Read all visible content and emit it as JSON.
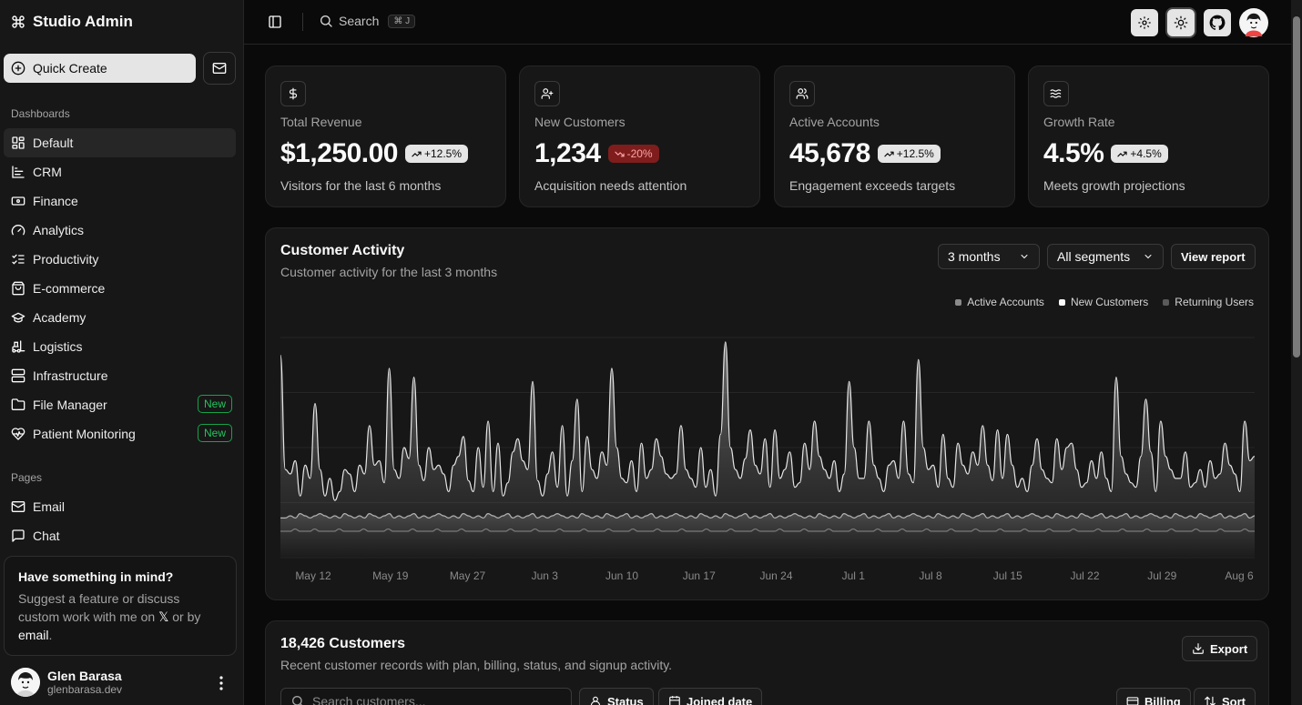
{
  "brand": {
    "name": "Studio Admin",
    "icon": "command-icon"
  },
  "sidebar": {
    "quick_create": "Quick Create",
    "dashboards_label": "Dashboards",
    "dashboards": [
      {
        "label": "Default",
        "icon": "layout-grid-icon",
        "active": true
      },
      {
        "label": "CRM",
        "icon": "chart-bar-icon"
      },
      {
        "label": "Finance",
        "icon": "banknote-icon"
      },
      {
        "label": "Analytics",
        "icon": "gauge-icon"
      },
      {
        "label": "Productivity",
        "icon": "list-checks-icon"
      },
      {
        "label": "E-commerce",
        "icon": "shopping-bag-icon"
      },
      {
        "label": "Academy",
        "icon": "graduation-cap-icon"
      },
      {
        "label": "Logistics",
        "icon": "forklift-icon"
      },
      {
        "label": "Infrastructure",
        "icon": "server-icon"
      },
      {
        "label": "File Manager",
        "icon": "folder-icon",
        "badge": "New"
      },
      {
        "label": "Patient Monitoring",
        "icon": "heart-pulse-icon",
        "badge": "New"
      }
    ],
    "pages_label": "Pages",
    "pages": [
      {
        "label": "Email",
        "icon": "mail-icon"
      },
      {
        "label": "Chat",
        "icon": "message-square-icon"
      }
    ],
    "promo": {
      "title": "Have something in mind?",
      "text_1": "Suggest a feature or discuss custom work with me on ",
      "x_glyph": "𝕏",
      "text_2": " or by ",
      "email_link": "email",
      "text_3": "."
    },
    "user": {
      "name": "Glen Barasa",
      "email": "glenbarasa.dev"
    }
  },
  "topbar": {
    "search_label": "Search",
    "search_kbd": "⌘ J"
  },
  "stats": [
    {
      "icon": "dollar-icon",
      "label": "Total Revenue",
      "value": "$1,250.00",
      "trend": "+12.5%",
      "direction": "up",
      "sub": "Visitors for the last 6 months"
    },
    {
      "icon": "user-plus-icon",
      "label": "New Customers",
      "value": "1,234",
      "trend": "-20%",
      "direction": "down",
      "sub": "Acquisition needs attention"
    },
    {
      "icon": "users-icon",
      "label": "Active Accounts",
      "value": "45,678",
      "trend": "+12.5%",
      "direction": "up",
      "sub": "Engagement exceeds targets"
    },
    {
      "icon": "waves-icon",
      "label": "Growth Rate",
      "value": "4.5%",
      "trend": "+4.5%",
      "direction": "up",
      "sub": "Meets growth projections"
    }
  ],
  "activity": {
    "title": "Customer Activity",
    "subtitle": "Customer activity for the last 3 months",
    "range_select": "3 months",
    "segment_select": "All segments",
    "view_report": "View report"
  },
  "chart_data": {
    "type": "area",
    "title": "Customer Activity",
    "x_ticks": [
      "May 12",
      "May 19",
      "May 27",
      "Jun 3",
      "Jun 10",
      "Jun 17",
      "Jun 24",
      "Jul 1",
      "Jul 8",
      "Jul 15",
      "Jul 22",
      "Jul 29",
      "Aug 6"
    ],
    "grid": true,
    "legend_position": "top-right",
    "ylim": [
      0,
      100
    ],
    "series": [
      {
        "name": "Active Accounts",
        "color": "#8a8a8a",
        "values": [
          92,
          40,
          38,
          44,
          28,
          42,
          36,
          70,
          40,
          28,
          36,
          26,
          30,
          40,
          38,
          30,
          42,
          38,
          60,
          42,
          44,
          34,
          86,
          40,
          36,
          50,
          45,
          82,
          42,
          35,
          50,
          40,
          42,
          38,
          30,
          42,
          46,
          55,
          35,
          30,
          50,
          32,
          62,
          30,
          52,
          28,
          34,
          48,
          54,
          44,
          40,
          80,
          35,
          28,
          38,
          48,
          32,
          60,
          28,
          44,
          72,
          30,
          55,
          40,
          36,
          48,
          42,
          86,
          50,
          36,
          34,
          44,
          30,
          52,
          36,
          40,
          54,
          46,
          38,
          36,
          38,
          60,
          40,
          36,
          32,
          50,
          32,
          40,
          28,
          56,
          98,
          50,
          40,
          36,
          45,
          58,
          42,
          38,
          54,
          32,
          58,
          36,
          40,
          48,
          32,
          34,
          52,
          40,
          62,
          46,
          40,
          36,
          44,
          30,
          38,
          80,
          50,
          36,
          36,
          62,
          42,
          36,
          30,
          42,
          44,
          36,
          62,
          38,
          34,
          90,
          50,
          40,
          42,
          32,
          56,
          36,
          32,
          52,
          42,
          38,
          48,
          42,
          60,
          42,
          35,
          58,
          36,
          56,
          42,
          32,
          36,
          30,
          42,
          54,
          40,
          36,
          34,
          54,
          40,
          50,
          52,
          40,
          32,
          34,
          44,
          36,
          48,
          36,
          30,
          82,
          46,
          38,
          34,
          32,
          46,
          72,
          48,
          30,
          62,
          46,
          40,
          36,
          36,
          48,
          32,
          34,
          40,
          32,
          44,
          36,
          38,
          52,
          42,
          38,
          30,
          62,
          44,
          46
        ]
      },
      {
        "name": "New Customers",
        "color": "#fafafa",
        "values": [
          18,
          18,
          19,
          18,
          20,
          19,
          18,
          19,
          20,
          19,
          18,
          19,
          18,
          20,
          19,
          18,
          19,
          18,
          20,
          19,
          18,
          19,
          20,
          18,
          19,
          18,
          19,
          20,
          18,
          19,
          18,
          19,
          20,
          19,
          18,
          19,
          18,
          20,
          19,
          18,
          19,
          18,
          20,
          19,
          18,
          19,
          20,
          18,
          19,
          18,
          19,
          20,
          18,
          19,
          18,
          19,
          20,
          19,
          18,
          19,
          18,
          20,
          19,
          18,
          19,
          18,
          20,
          19,
          18,
          19,
          20,
          18,
          19,
          18,
          19,
          20,
          18,
          19,
          18,
          19,
          20,
          19,
          18,
          19,
          18,
          20,
          19,
          18,
          19,
          18,
          20,
          19,
          18,
          19,
          20,
          18,
          19,
          18,
          19,
          20,
          18,
          19,
          18,
          19,
          20,
          19,
          18,
          19,
          18,
          20,
          19,
          18,
          19,
          18,
          20,
          19,
          18,
          19,
          20,
          18,
          19,
          18,
          19,
          20,
          18,
          19,
          18,
          19,
          20,
          19,
          18,
          19,
          18,
          20,
          19,
          18,
          19,
          18,
          20,
          19,
          18,
          19,
          20,
          18,
          19,
          18,
          19,
          20,
          18,
          19,
          18,
          19,
          20,
          19,
          18,
          19,
          18,
          20,
          19,
          18,
          19,
          18,
          20,
          19,
          18,
          19,
          20,
          18,
          19,
          18,
          19,
          20,
          18,
          19,
          18,
          19,
          20,
          19,
          18,
          19,
          18,
          20,
          19,
          18,
          19,
          18,
          20,
          19,
          18,
          19,
          20,
          18,
          19,
          18,
          19,
          20,
          18,
          19
        ]
      },
      {
        "name": "Returning Users",
        "color": "#5a5a5a",
        "values": [
          12,
          12,
          12,
          13,
          12,
          12,
          12,
          13,
          12,
          12,
          12,
          12,
          13,
          12,
          12,
          12,
          12,
          13,
          12,
          12,
          12,
          12,
          13,
          12,
          12,
          12,
          12,
          13,
          12,
          12,
          12,
          12,
          13,
          12,
          12,
          12,
          12,
          13,
          12,
          12,
          12,
          12,
          13,
          12,
          12,
          12,
          12,
          13,
          12,
          12,
          12,
          12,
          13,
          12,
          12,
          12,
          12,
          13,
          12,
          12,
          12,
          12,
          13,
          12,
          12,
          12,
          12,
          13,
          12,
          12,
          12,
          12,
          13,
          12,
          12,
          12,
          12,
          13,
          12,
          12,
          12,
          12,
          13,
          12,
          12,
          12,
          12,
          13,
          12,
          12,
          12,
          12,
          13,
          12,
          12,
          12,
          12,
          13,
          12,
          12,
          12,
          12,
          13,
          12,
          12,
          12,
          12,
          13,
          12,
          12,
          12,
          12,
          13,
          12,
          12,
          12,
          12,
          13,
          12,
          12,
          12,
          12,
          13,
          12,
          12,
          12,
          12,
          13,
          12,
          12,
          12,
          12,
          13,
          12,
          12,
          12,
          12,
          13,
          12,
          12,
          12,
          12,
          13,
          12,
          12,
          12,
          12,
          13,
          12,
          12,
          12,
          12,
          13,
          12,
          12,
          12,
          12,
          13,
          12,
          12,
          12,
          12,
          13,
          12,
          12,
          12,
          12,
          13,
          12,
          12,
          12,
          12,
          13,
          12,
          12,
          12,
          12,
          13,
          12,
          12,
          12,
          12,
          13,
          12,
          12,
          12,
          12,
          13,
          12,
          12,
          12,
          12,
          13,
          12,
          12,
          12,
          12,
          13,
          12,
          12
        ]
      }
    ]
  },
  "customers": {
    "title": "18,426 Customers",
    "subtitle": "Recent customer records with plan, billing, status, and signup activity.",
    "export": "Export",
    "search_placeholder": "Search customers...",
    "filters": {
      "status": "Status",
      "joined": "Joined date",
      "billing": "Billing",
      "sort": "Sort"
    }
  }
}
